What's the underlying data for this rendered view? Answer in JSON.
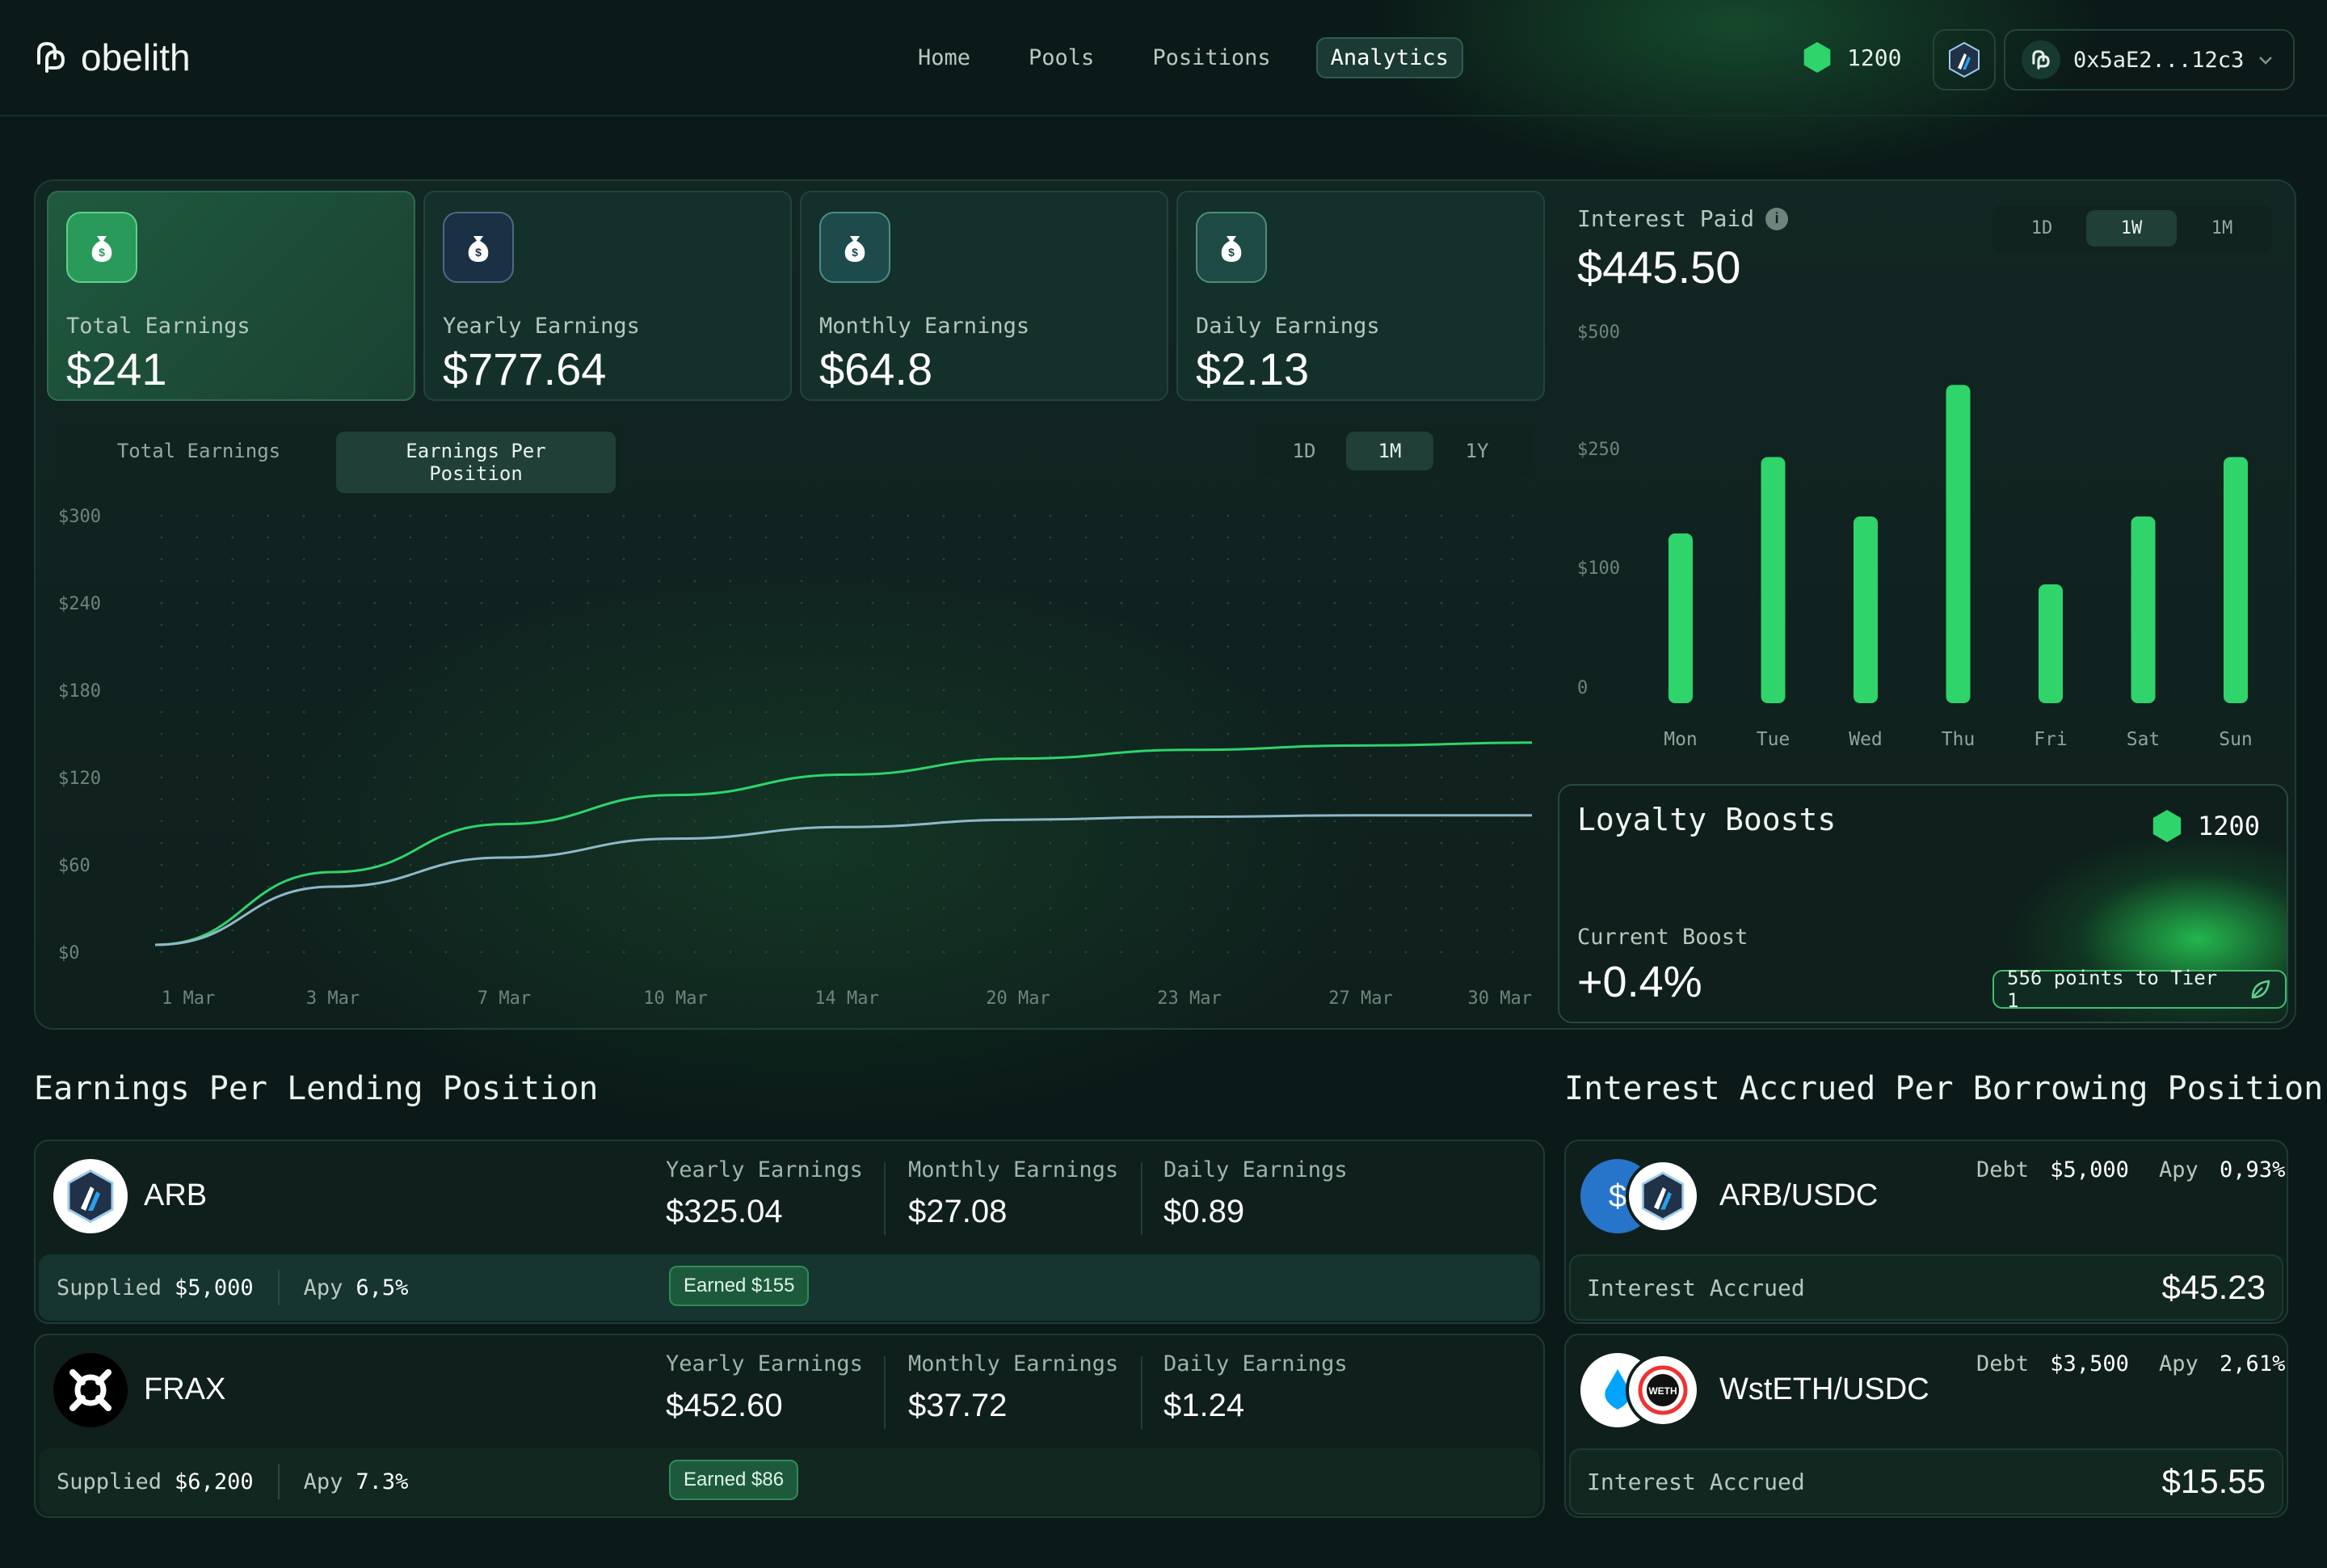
{
  "brand": {
    "name": "obelith"
  },
  "nav": {
    "items": [
      "Home",
      "Pools",
      "Positions",
      "Analytics"
    ],
    "active": "Analytics"
  },
  "header": {
    "points": "1200",
    "wallet": "0x5aE2...12c3"
  },
  "stats": [
    {
      "label": "Total Earnings",
      "value": "$241"
    },
    {
      "label": "Yearly Earnings",
      "value": "$777.64"
    },
    {
      "label": "Monthly Earnings",
      "value": "$64.8"
    },
    {
      "label": "Daily Earnings",
      "value": "$2.13"
    }
  ],
  "earnings_chart": {
    "tabs": [
      "Total Earnings",
      "Earnings Per Position"
    ],
    "active_tab": "Earnings Per Position",
    "ranges": [
      "1D",
      "1M",
      "1Y"
    ],
    "active_range": "1M",
    "chart_data": {
      "type": "line",
      "x": [
        "1 Mar",
        "3 Mar",
        "7 Mar",
        "10 Mar",
        "14 Mar",
        "20 Mar",
        "23 Mar",
        "27 Mar",
        "30 Mar"
      ],
      "y_ticks": [
        "$300",
        "$240",
        "$180",
        "$120",
        "$60",
        "$0"
      ],
      "ylim": [
        0,
        300
      ],
      "series": [
        {
          "color": "#2fd46a",
          "values": [
            5,
            55,
            88,
            108,
            122,
            133,
            139,
            142,
            144
          ]
        },
        {
          "color": "#8fb8c9",
          "values": [
            5,
            45,
            65,
            78,
            86,
            91,
            93,
            94,
            94
          ]
        }
      ]
    }
  },
  "interest_paid": {
    "title": "Interest Paid",
    "value": "$445.50",
    "ranges": [
      "1D",
      "1W",
      "1M"
    ],
    "active_range": "1W",
    "chart_data": {
      "type": "bar",
      "categories": [
        "Mon",
        "Tue",
        "Wed",
        "Thu",
        "Fri",
        "Sat",
        "Sun"
      ],
      "y_ticks": [
        "$500",
        "$250",
        "$100",
        "0"
      ],
      "values": [
        200,
        290,
        220,
        375,
        140,
        220,
        290
      ],
      "color": "#2fd46a"
    }
  },
  "loyalty": {
    "title": "Loyalty Boosts",
    "points": "1200",
    "boost_label": "Current Boost",
    "boost_value": "+0.4%",
    "tier_text": "556 points to Tier 1"
  },
  "lending": {
    "title": "Earnings Per Lending Position",
    "positions": [
      {
        "name": "ARB",
        "yearly_label": "Yearly Earnings",
        "yearly": "$325.04",
        "monthly_label": "Monthly Earnings",
        "monthly": "$27.08",
        "daily_label": "Daily Earnings",
        "daily": "$0.89",
        "supplied_label": "Supplied",
        "supplied": "$5,000",
        "apy_label": "Apy",
        "apy": "6,5%",
        "earned": "Earned $155"
      },
      {
        "name": "FRAX",
        "yearly_label": "Yearly Earnings",
        "yearly": "$452.60",
        "monthly_label": "Monthly Earnings",
        "monthly": "$37.72",
        "daily_label": "Daily Earnings",
        "daily": "$1.24",
        "supplied_label": "Supplied",
        "supplied": "$6,200",
        "apy_label": "Apy",
        "apy": "7.3%",
        "earned": "Earned $86"
      }
    ]
  },
  "borrowing": {
    "title": "Interest Accrued Per Borrowing Position",
    "positions": [
      {
        "name": "ARB/USDC",
        "debt_label": "Debt",
        "debt": "$5,000",
        "apy_label": "Apy",
        "apy": "0,93%",
        "accrued_label": "Interest Accrued",
        "accrued": "$45.23"
      },
      {
        "name": "WstETH/USDC",
        "debt_label": "Debt",
        "debt": "$3,500",
        "apy_label": "Apy",
        "apy": "2,61%",
        "accrued_label": "Interest Accrued",
        "accrued": "$15.55"
      }
    ]
  }
}
